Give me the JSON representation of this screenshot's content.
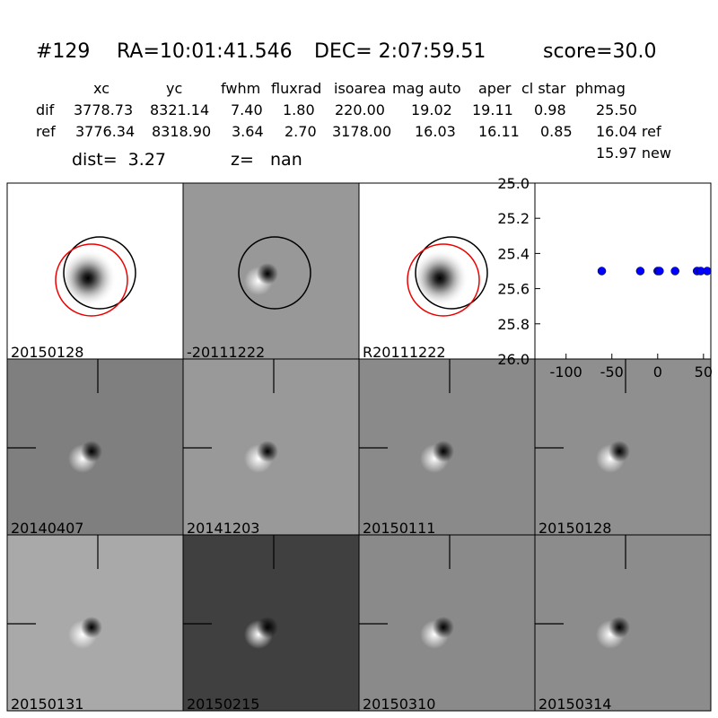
{
  "header": {
    "id": "#129",
    "ra": "RA=10:01:41.546",
    "dec": "DEC= 2:07:59.51",
    "score": "score=30.0"
  },
  "table": {
    "columns": [
      "xc",
      "yc",
      "fwhm",
      "fluxrad",
      "isoarea",
      "mag auto",
      "aper",
      "cl star",
      "phmag"
    ],
    "rows": [
      [
        "dif",
        "3778.73",
        "8321.14",
        "7.40",
        "1.80",
        "220.00",
        "19.02",
        "19.11",
        "0.98",
        "25.50"
      ],
      [
        "ref",
        "3776.34",
        "8318.90",
        "3.64",
        "2.70",
        "3178.00",
        "16.03",
        "16.11",
        "0.85",
        "16.04 ref"
      ]
    ],
    "extra": "15.97 new"
  },
  "dist": "dist=  3.27",
  "z": "z=   nan",
  "stamps": [
    {
      "label": "20150128"
    },
    {
      "label": "-20111222"
    },
    {
      "label": "R20111222"
    },
    {
      "label": "20140407"
    },
    {
      "label": "20141203"
    },
    {
      "label": "20150111"
    },
    {
      "label": "20150128",
      "label_color": "#ff0000"
    },
    {
      "label": "20150131"
    },
    {
      "label": "20150215"
    },
    {
      "label": "20150310"
    },
    {
      "label": "20150314"
    }
  ],
  "chart_data": {
    "type": "scatter",
    "x": [
      -61,
      -19,
      0,
      2,
      19,
      43,
      47,
      54
    ],
    "values": [
      25.5,
      25.5,
      25.5,
      25.5,
      25.5,
      25.5,
      25.5,
      25.5
    ],
    "color": "#0000ff",
    "xlim": [
      -134,
      58
    ],
    "ylim": [
      26.0,
      25.0
    ],
    "xticks": [
      -100,
      -50,
      0,
      50
    ],
    "yticks": [
      {
        "value": 25.0,
        "label": "25.0"
      },
      {
        "value": 25.2,
        "label": "25.2"
      },
      {
        "value": 25.4,
        "label": "25.4"
      },
      {
        "value": 25.6,
        "label": "25.6"
      },
      {
        "value": 25.8,
        "label": "25.8"
      },
      {
        "value": 26.0,
        "label": "26.0"
      }
    ]
  }
}
